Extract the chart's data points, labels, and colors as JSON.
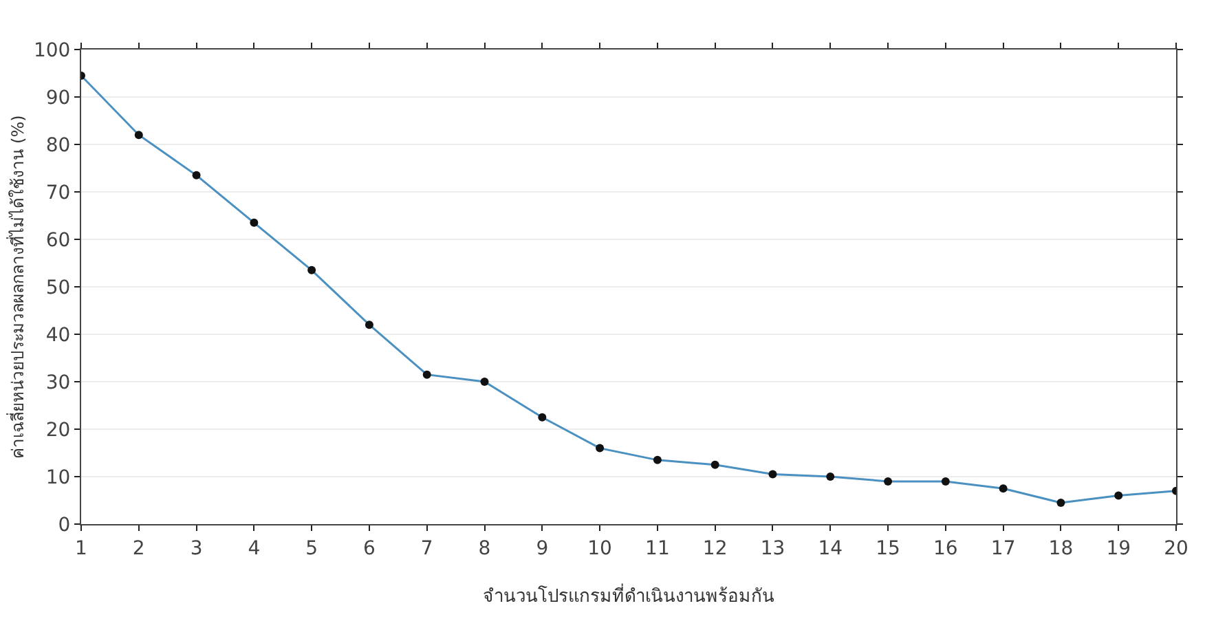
{
  "chart_data": {
    "type": "line",
    "xlabel": "จำนวนโปรแกรมที่ดำเนินงานพร้อมกัน",
    "ylabel": "ค่าเฉลี่ยหน่วยประมวลผลกลางที่ไม่ได้ใช้งาน (%)",
    "x": [
      1,
      2,
      3,
      4,
      5,
      6,
      7,
      8,
      9,
      10,
      11,
      12,
      13,
      14,
      15,
      16,
      17,
      18,
      19,
      20
    ],
    "series": [
      {
        "color": "#4a90c0",
        "values": [
          94.5,
          82,
          73.5,
          63.5,
          53.5,
          42,
          31.5,
          30,
          22.5,
          16,
          13.5,
          12.5,
          10.5,
          10,
          9,
          9,
          7.5,
          4.5,
          6,
          7
        ]
      }
    ],
    "xlim": [
      1,
      20
    ],
    "xticks": [
      1,
      2,
      3,
      4,
      5,
      6,
      7,
      8,
      9,
      10,
      11,
      12,
      13,
      14,
      15,
      16,
      17,
      18,
      19,
      20
    ],
    "ylim": [
      0,
      100
    ],
    "yticks": [
      0,
      10,
      20,
      30,
      40,
      50,
      60,
      70,
      80,
      90,
      100
    ],
    "grid": "y",
    "marker": "circle",
    "line_style": "solid"
  }
}
